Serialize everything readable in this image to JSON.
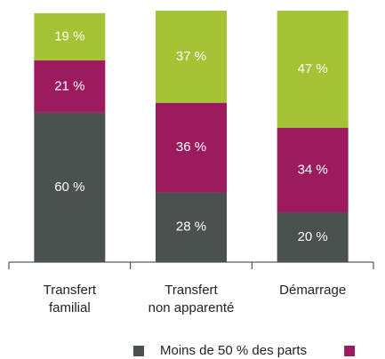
{
  "chart_data": {
    "type": "stacked_bar",
    "categories": [
      "Transfert familial",
      "Transfert non apparenté",
      "Démarrage"
    ],
    "series": [
      {
        "name": "Moins de 50 % des parts",
        "color": "#4b514f",
        "values": [
          60,
          28,
          20
        ],
        "value_labels": [
          "60 %",
          "28 %",
          "20 %"
        ]
      },
      {
        "color": "#9c1b5f",
        "values": [
          21,
          36,
          34
        ],
        "value_labels": [
          "21 %",
          "36 %",
          "34 %"
        ]
      },
      {
        "color": "#a5c334",
        "values": [
          19,
          37,
          47
        ],
        "value_labels": [
          "19 %",
          "37 %",
          "47 %"
        ]
      }
    ],
    "ylim": [
      0,
      101
    ]
  }
}
